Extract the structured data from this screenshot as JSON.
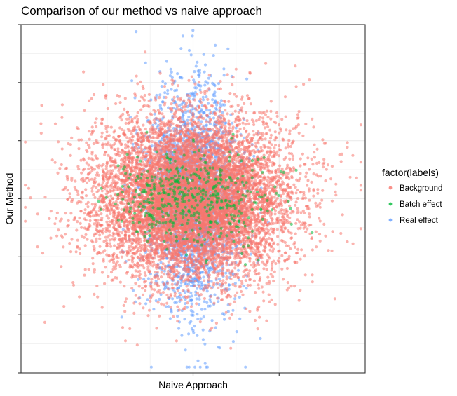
{
  "chart_data": {
    "type": "scatter",
    "title": "Comparison of our method vs naive approach",
    "xlabel": "Naive Approach",
    "ylabel": "Our Method",
    "x_tick_labels": [
      "",
      "",
      ""
    ],
    "y_tick_labels": [
      "",
      "",
      "",
      "",
      "",
      "",
      ""
    ],
    "grid": true,
    "xlim": [
      -4,
      4
    ],
    "ylim": [
      -3,
      3
    ],
    "legend": {
      "title": "factor(labels)",
      "placement": "right",
      "entries": [
        "Background",
        "Batch effect",
        "Real effect"
      ]
    },
    "series": [
      {
        "name": "Background",
        "color": "#F8766D",
        "distribution": {
          "x_mean": 0,
          "x_sd": 1.15,
          "y_mean": 0,
          "y_sd": 0.7,
          "corr": 0
        }
      },
      {
        "name": "Batch effect",
        "color": "#00BA38",
        "distribution": {
          "x_mean": 0,
          "x_sd": 0.9,
          "y_mean": 0,
          "y_sd": 0.4,
          "corr": 0
        }
      },
      {
        "name": "Real effect",
        "color": "#619CFF",
        "distribution": {
          "x_mean": 0,
          "x_sd": 0.55,
          "y_mean": 0,
          "y_sd": 0.95,
          "corr": 0
        }
      }
    ]
  }
}
